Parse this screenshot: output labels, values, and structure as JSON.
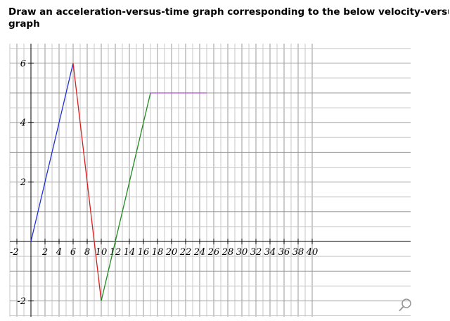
{
  "question": {
    "line1": "Draw an acceleration-versus-time graph corresponding to the below velocity-versus-tim",
    "line2": "graph"
  },
  "toolbar": {
    "zoom_icon": "magnifier-icon"
  },
  "colors": {
    "grid_minor": "#c8c8c8",
    "grid_major": "#9a9a9a",
    "axis": "#000000",
    "segment1": "#1f2fd6",
    "segment2": "#d61f1f",
    "segment3": "#1f8a1f",
    "segment4": "#b04fd0"
  },
  "chart_data": {
    "type": "line",
    "title": "",
    "xlabel": "",
    "ylabel": "",
    "xlim": [
      -2,
      40
    ],
    "ylim": [
      -2.4,
      6.6
    ],
    "grid": true,
    "x_tick_labels": [
      "-2",
      "2",
      "4",
      "6",
      "8",
      "10",
      "12",
      "14",
      "16",
      "18",
      "20",
      "22",
      "24",
      "26",
      "28",
      "30",
      "32",
      "34",
      "36",
      "38",
      "40"
    ],
    "y_tick_labels": [
      "6",
      "4",
      "2",
      "-2"
    ],
    "series": [
      {
        "points": [
          [
            0,
            0
          ],
          [
            6,
            6
          ]
        ],
        "color": "#1f2fd6"
      },
      {
        "points": [
          [
            6,
            6
          ],
          [
            10,
            -2
          ]
        ],
        "color": "#d61f1f"
      },
      {
        "points": [
          [
            10,
            -2
          ],
          [
            17,
            5
          ]
        ],
        "color": "#1f8a1f"
      },
      {
        "points": [
          [
            17,
            5
          ],
          [
            25,
            5
          ]
        ],
        "color": "#b04fd0"
      }
    ]
  }
}
